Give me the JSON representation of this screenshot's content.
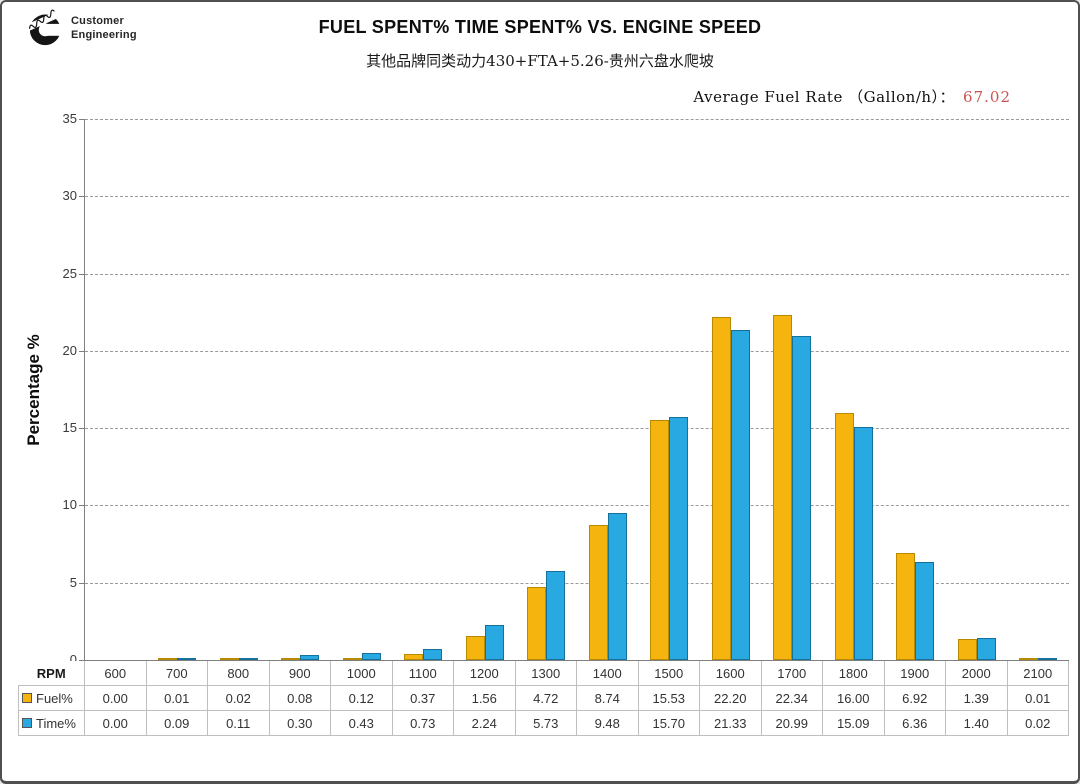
{
  "logo": {
    "line1": "Customer",
    "line2": "Engineering"
  },
  "header": {
    "title": "FUEL SPENT% TIME SPENT% VS. ENGINE SPEED",
    "subtitle": "其他品牌同类动力430+FTA+5.26-贵州六盘水爬坡",
    "fuel_rate_label": "Average Fuel Rate （Gallon/h）：",
    "fuel_rate_value": "67.02",
    "fuel_rate_value_color": "#c75553"
  },
  "chart_data": {
    "type": "bar",
    "title": "FUEL SPENT% TIME SPENT% VS. ENGINE SPEED",
    "xlabel": "RPM",
    "ylabel": "Percentage %",
    "ylim": [
      0,
      35
    ],
    "ytick_step": 5,
    "grid": "horizontal-dashed",
    "legend_position": "data-table-left",
    "categories": [
      "600",
      "700",
      "800",
      "900",
      "1000",
      "1100",
      "1200",
      "1300",
      "1400",
      "1500",
      "1600",
      "1700",
      "1800",
      "1900",
      "2000",
      "2100"
    ],
    "series": [
      {
        "name": "Fuel%",
        "color": "#f6b40e",
        "border_color": "#b98a00",
        "values": [
          0.0,
          0.01,
          0.02,
          0.08,
          0.12,
          0.37,
          1.56,
          4.72,
          8.74,
          15.53,
          22.2,
          22.34,
          16.0,
          6.92,
          1.39,
          0.01
        ]
      },
      {
        "name": "Time%",
        "color": "#29a9e1",
        "border_color": "#15719c",
        "values": [
          0.0,
          0.09,
          0.11,
          0.3,
          0.43,
          0.73,
          2.24,
          5.73,
          9.48,
          15.7,
          21.33,
          20.99,
          15.09,
          6.36,
          1.4,
          0.02
        ]
      }
    ]
  }
}
